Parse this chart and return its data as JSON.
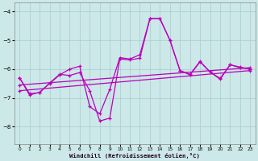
{
  "xlabel": "Windchill (Refroidissement éolien,°C)",
  "background_color": "#cce8e8",
  "line_color": "#bb00bb",
  "xlim": [
    -0.5,
    23.5
  ],
  "ylim": [
    -8.6,
    -3.7
  ],
  "yticks": [
    -8,
    -7,
    -6,
    -5,
    -4
  ],
  "xticks": [
    0,
    1,
    2,
    3,
    4,
    5,
    6,
    7,
    8,
    9,
    10,
    11,
    12,
    13,
    14,
    15,
    16,
    17,
    18,
    19,
    20,
    21,
    22,
    23
  ],
  "series1_x": [
    0,
    1,
    2,
    3,
    4,
    5,
    6,
    7,
    8,
    9,
    10,
    11,
    12,
    13,
    14,
    15,
    16,
    17,
    18,
    19,
    20,
    21,
    22,
    23
  ],
  "series1_y": [
    -6.3,
    -6.9,
    -6.8,
    -6.5,
    -6.2,
    -6.0,
    -5.9,
    -7.3,
    -7.55,
    -6.7,
    -5.6,
    -5.65,
    -5.5,
    -4.25,
    -4.25,
    -5.0,
    -6.05,
    -6.2,
    -5.75,
    -6.1,
    -6.35,
    -5.85,
    -5.95,
    -6.0
  ],
  "series2_x": [
    0,
    1,
    2,
    3,
    4,
    5,
    6,
    7,
    8,
    9,
    10,
    11,
    12,
    13,
    14,
    15,
    16,
    17,
    18,
    19,
    20,
    21,
    22,
    23
  ],
  "series2_y": [
    -6.3,
    -6.85,
    -6.82,
    -6.48,
    -6.18,
    -6.22,
    -6.12,
    -6.75,
    -7.8,
    -7.7,
    -5.65,
    -5.68,
    -5.62,
    -4.25,
    -4.25,
    -5.0,
    -6.05,
    -6.18,
    -5.73,
    -6.1,
    -6.32,
    -5.85,
    -5.93,
    -6.0
  ],
  "series3_x": [
    0,
    23
  ],
  "series3_y": [
    -6.55,
    -5.95
  ],
  "series4_x": [
    0,
    23
  ],
  "series4_y": [
    -6.75,
    -6.05
  ]
}
